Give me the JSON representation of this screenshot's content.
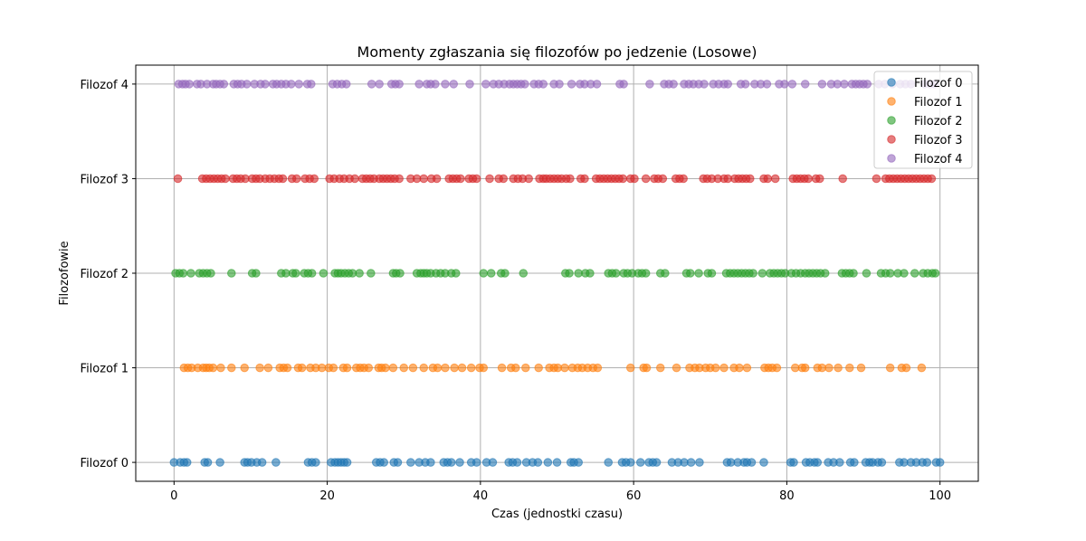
{
  "chart_data": {
    "type": "scatter",
    "title": "Momenty zgłaszania się filozofów po jedzenie (Losowe)",
    "xlabel": "Czas (jednostki czasu)",
    "ylabel": "Filozofowie",
    "xlim": [
      -5,
      105
    ],
    "ylim": [
      -0.2,
      4.2
    ],
    "xticks": [
      0,
      20,
      40,
      60,
      80,
      100
    ],
    "yticks": [
      0,
      1,
      2,
      3,
      4
    ],
    "ytick_labels": [
      "Filozof 0",
      "Filozof 1",
      "Filozof 2",
      "Filozof 3",
      "Filozof 4"
    ],
    "grid": true,
    "legend_position": "top-right",
    "series": [
      {
        "name": "Filozof 0",
        "color": "#1f77b4",
        "y": 0,
        "x": [
          0,
          0.8,
          1.3,
          1.7,
          4.0,
          4.4,
          6.0,
          9.2,
          9.6,
          10.1,
          10.8,
          11.5,
          13.3,
          17.5,
          18.0,
          18.5,
          20.5,
          21.0,
          21.4,
          21.8,
          22.2,
          22.6,
          26.4,
          26.9,
          27.4,
          28.7,
          29.2,
          30.9,
          32.0,
          32.8,
          33.5,
          35.2,
          35.7,
          36.2,
          37.3,
          38.8,
          39.5,
          40.8,
          41.6,
          43.7,
          44.2,
          44.8,
          46.0,
          46.8,
          47.5,
          48.8,
          50.0,
          51.8,
          52.2,
          52.8,
          56.7,
          58.5,
          59.0,
          59.6,
          60.9,
          62.0,
          62.5,
          63.0,
          65.0,
          65.8,
          66.6,
          67.5,
          68.6,
          72.2,
          72.7,
          73.6,
          74.4,
          74.8,
          75.4,
          77.0,
          80.5,
          80.9,
          82.5,
          83.0,
          83.6,
          84.0,
          85.4,
          86.1,
          86.9,
          88.3,
          88.8,
          90.3,
          90.8,
          91.2,
          91.9,
          92.4,
          94.7,
          95.3,
          96.2,
          96.9,
          97.7,
          98.3,
          99.5,
          100.0
        ]
      },
      {
        "name": "Filozof 1",
        "color": "#ff7f0e",
        "y": 1,
        "x": [
          1.3,
          1.8,
          2.3,
          3.1,
          3.8,
          4.2,
          4.6,
          5.1,
          6.1,
          7.5,
          9.2,
          11.2,
          12.3,
          13.8,
          14.3,
          14.8,
          16.2,
          16.7,
          17.8,
          18.5,
          19.3,
          20.2,
          20.8,
          22.1,
          22.6,
          23.8,
          24.3,
          24.8,
          25.4,
          26.7,
          27.1,
          27.6,
          28.6,
          30.0,
          31.2,
          32.6,
          33.8,
          34.4,
          35.4,
          36.6,
          37.6,
          38.8,
          39.9,
          40.4,
          42.8,
          44.0,
          44.6,
          45.9,
          47.6,
          49.0,
          49.6,
          50.1,
          51.0,
          52.0,
          52.7,
          53.3,
          54.0,
          54.7,
          55.3,
          59.6,
          61.3,
          61.7,
          63.5,
          65.6,
          67.3,
          68.0,
          68.6,
          69.4,
          70.0,
          70.7,
          71.8,
          73.1,
          73.8,
          74.8,
          77.1,
          77.6,
          78.1,
          78.7,
          81.1,
          82.0,
          82.4,
          84.0,
          84.6,
          85.5,
          86.7,
          88.2,
          89.7,
          93.5,
          95.0,
          95.6,
          97.6
        ]
      },
      {
        "name": "Filozof 2",
        "color": "#2ca02c",
        "y": 2,
        "x": [
          0.2,
          0.7,
          1.2,
          2.2,
          3.3,
          3.8,
          4.3,
          4.8,
          7.5,
          10.2,
          10.7,
          14.0,
          14.6,
          15.5,
          15.9,
          17.0,
          17.5,
          18.0,
          19.5,
          21.0,
          21.4,
          21.8,
          22.3,
          22.8,
          23.3,
          24.2,
          25.7,
          28.6,
          29.0,
          29.5,
          31.7,
          32.2,
          32.6,
          33.0,
          33.5,
          34.2,
          34.8,
          35.4,
          36.2,
          36.8,
          40.4,
          41.4,
          42.7,
          43.2,
          45.6,
          51.1,
          51.6,
          52.8,
          53.7,
          54.3,
          56.7,
          57.2,
          57.7,
          58.7,
          59.2,
          59.8,
          60.6,
          61.1,
          61.6,
          63.5,
          64.1,
          66.9,
          67.4,
          68.5,
          69.7,
          70.2,
          72.1,
          72.6,
          73.1,
          73.6,
          74.1,
          74.6,
          75.1,
          75.6,
          76.8,
          77.8,
          78.3,
          78.8,
          79.3,
          79.8,
          80.6,
          81.2,
          81.8,
          82.4,
          82.9,
          83.4,
          83.9,
          84.4,
          85.0,
          87.2,
          87.7,
          88.2,
          88.7,
          90.4,
          92.3,
          92.9,
          93.5,
          94.5,
          95.3,
          96.7,
          97.8,
          98.4,
          99.0,
          99.4
        ]
      },
      {
        "name": "Filozof 3",
        "color": "#d62728",
        "y": 3,
        "x": [
          0.5,
          3.7,
          4.2,
          4.7,
          5.2,
          5.7,
          6.2,
          6.7,
          7.7,
          8.2,
          8.7,
          9.3,
          10.2,
          10.7,
          11.2,
          11.9,
          12.5,
          13.1,
          13.7,
          14.2,
          15.4,
          16.0,
          17.1,
          17.7,
          18.3,
          20.3,
          20.9,
          21.6,
          22.2,
          22.9,
          23.6,
          24.6,
          25.1,
          25.6,
          26.1,
          26.8,
          27.3,
          27.8,
          28.3,
          28.8,
          29.4,
          30.9,
          31.7,
          32.6,
          33.6,
          34.3,
          35.9,
          36.4,
          36.9,
          37.4,
          38.5,
          39.0,
          39.5,
          41.2,
          42.4,
          43.0,
          44.3,
          44.9,
          45.5,
          46.3,
          47.7,
          48.2,
          48.6,
          49.1,
          49.6,
          50.1,
          50.6,
          51.2,
          51.7,
          53.1,
          53.6,
          55.1,
          55.6,
          56.1,
          56.6,
          57.1,
          57.6,
          58.1,
          58.6,
          59.6,
          60.1,
          61.6,
          62.7,
          63.2,
          63.8,
          65.5,
          66.0,
          66.5,
          69.1,
          69.6,
          70.2,
          71.0,
          71.8,
          72.3,
          73.2,
          73.7,
          74.2,
          74.7,
          75.2,
          77.0,
          77.5,
          78.5,
          80.8,
          81.3,
          81.8,
          82.3,
          82.8,
          83.8,
          84.3,
          87.3,
          91.7,
          92.9,
          93.4,
          93.9,
          94.4,
          94.9,
          95.4,
          95.9,
          96.4,
          96.9,
          97.4,
          97.9,
          98.4,
          98.9
        ]
      },
      {
        "name": "Filozof 4",
        "color": "#9467bd",
        "y": 4,
        "x": [
          0.6,
          1.1,
          1.5,
          2.0,
          3.0,
          3.5,
          4.3,
          5.1,
          5.5,
          6.0,
          6.5,
          7.8,
          8.3,
          8.8,
          9.5,
          10.5,
          11.3,
          11.9,
          12.9,
          13.4,
          14.0,
          14.6,
          15.3,
          16.3,
          17.4,
          17.9,
          20.7,
          21.3,
          21.9,
          22.5,
          25.8,
          26.8,
          28.4,
          28.9,
          29.4,
          32.0,
          33.0,
          33.5,
          34.1,
          35.4,
          36.5,
          38.6,
          40.7,
          41.7,
          42.4,
          43.1,
          43.8,
          44.3,
          44.8,
          45.3,
          45.8,
          47.0,
          47.6,
          48.2,
          49.6,
          50.3,
          51.9,
          53.0,
          53.6,
          54.4,
          55.2,
          58.2,
          58.7,
          62.1,
          64.0,
          64.6,
          65.2,
          66.6,
          67.2,
          67.8,
          68.5,
          69.2,
          70.4,
          71.1,
          71.8,
          72.3,
          74.0,
          74.6,
          75.8,
          76.6,
          77.4,
          79.0,
          79.7,
          80.7,
          82.4,
          84.6,
          85.8,
          86.6,
          87.5,
          88.5,
          89.0,
          89.5,
          90.0,
          90.5,
          92.0,
          92.8,
          93.8,
          94.8,
          95.5,
          96.2,
          98.0,
          98.7,
          99.3
        ]
      }
    ]
  }
}
